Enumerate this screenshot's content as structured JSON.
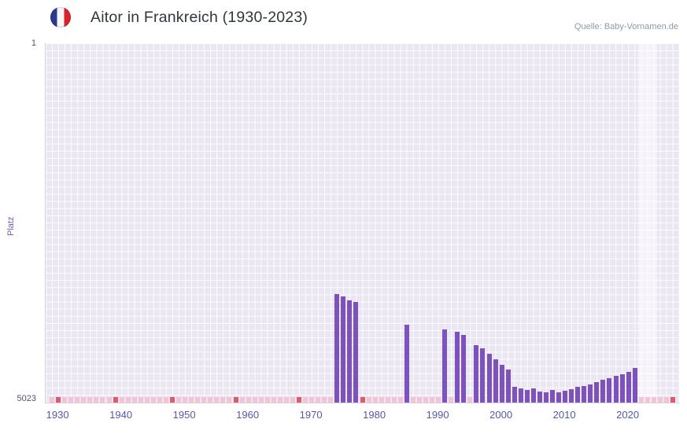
{
  "header": {
    "source": "Quelle: Baby-Vornamen.de"
  },
  "icons": {
    "flag": "france-flag-icon"
  },
  "chart_data": {
    "type": "bar",
    "title": "Aitor in Frankreich (1930-2023)",
    "ylabel": "Platz",
    "xlabel": "",
    "y_axis": {
      "min": 1,
      "max": 5023,
      "inverted": true,
      "top_label": "1",
      "bottom_label": "5023"
    },
    "x_domain": [
      1928,
      2028
    ],
    "x_ticks": [
      1930,
      1940,
      1950,
      1960,
      1970,
      1980,
      1990,
      2000,
      2010,
      2020
    ],
    "grid": true,
    "legend": false,
    "bar_color": "#7e52bb",
    "plot_bg": "#eae7f3",
    "highlight_band": {
      "from": 2021.5,
      "to": 2024.5,
      "color": "rgba(255,255,255,0.5)"
    },
    "series": [
      {
        "year": 1974,
        "rank": 3510
      },
      {
        "year": 1975,
        "rank": 3535
      },
      {
        "year": 1976,
        "rank": 3590
      },
      {
        "year": 1977,
        "rank": 3620
      },
      {
        "year": 1985,
        "rank": 3940
      },
      {
        "year": 1991,
        "rank": 4000
      },
      {
        "year": 1993,
        "rank": 4030
      },
      {
        "year": 1994,
        "rank": 4075
      },
      {
        "year": 1996,
        "rank": 4220
      },
      {
        "year": 1997,
        "rank": 4265
      },
      {
        "year": 1998,
        "rank": 4340
      },
      {
        "year": 1999,
        "rank": 4420
      },
      {
        "year": 2000,
        "rank": 4490
      },
      {
        "year": 2001,
        "rank": 4560
      },
      {
        "year": 2002,
        "rank": 4800
      },
      {
        "year": 2003,
        "rank": 4825
      },
      {
        "year": 2004,
        "rank": 4845
      },
      {
        "year": 2005,
        "rank": 4825
      },
      {
        "year": 2006,
        "rank": 4865
      },
      {
        "year": 2007,
        "rank": 4880
      },
      {
        "year": 2008,
        "rank": 4845
      },
      {
        "year": 2009,
        "rank": 4880
      },
      {
        "year": 2010,
        "rank": 4855
      },
      {
        "year": 2011,
        "rank": 4835
      },
      {
        "year": 2012,
        "rank": 4805
      },
      {
        "year": 2013,
        "rank": 4790
      },
      {
        "year": 2014,
        "rank": 4770
      },
      {
        "year": 2015,
        "rank": 4735
      },
      {
        "year": 2016,
        "rank": 4700
      },
      {
        "year": 2017,
        "rank": 4680
      },
      {
        "year": 2018,
        "rank": 4645
      },
      {
        "year": 2019,
        "rank": 4625
      },
      {
        "year": 2020,
        "rank": 4590
      },
      {
        "year": 2021,
        "rank": 4535
      }
    ],
    "bottom_marks": {
      "pink_color": "#f3c3d6",
      "red_color": "#e05a6d",
      "year_start": 1929,
      "year_end": 2027,
      "red_years": [
        1930,
        1939,
        1948,
        1958,
        1968,
        1978,
        2027
      ]
    }
  }
}
